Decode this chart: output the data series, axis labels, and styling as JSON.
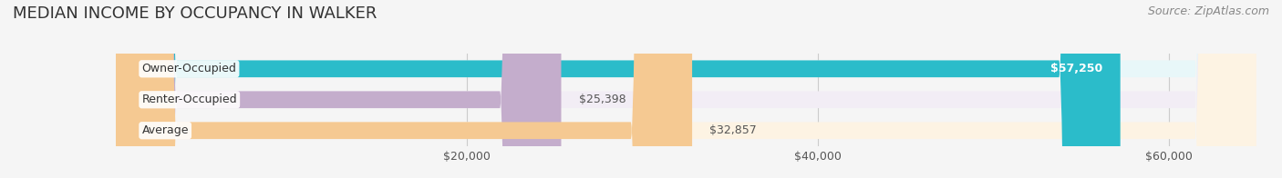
{
  "title": "MEDIAN INCOME BY OCCUPANCY IN WALKER",
  "source": "Source: ZipAtlas.com",
  "categories": [
    "Owner-Occupied",
    "Renter-Occupied",
    "Average"
  ],
  "values": [
    57250,
    25398,
    32857
  ],
  "labels": [
    "$57,250",
    "$25,398",
    "$32,857"
  ],
  "bar_colors": [
    "#2BBCCA",
    "#C4ADCC",
    "#F5C992"
  ],
  "bar_bg_colors": [
    "#E8F7F9",
    "#F2EDF5",
    "#FDF3E3"
  ],
  "xlim": [
    0,
    65000
  ],
  "xticks": [
    20000,
    40000,
    60000
  ],
  "xtick_labels": [
    "$20,000",
    "$40,000",
    "$60,000"
  ],
  "bar_height": 0.55,
  "title_fontsize": 13,
  "label_fontsize": 9,
  "tick_fontsize": 9,
  "source_fontsize": 9,
  "bg_color": "#F5F5F5",
  "grid_color": "#CCCCCC",
  "label_color_inside": "#FFFFFF",
  "label_color_outside": "#555555"
}
